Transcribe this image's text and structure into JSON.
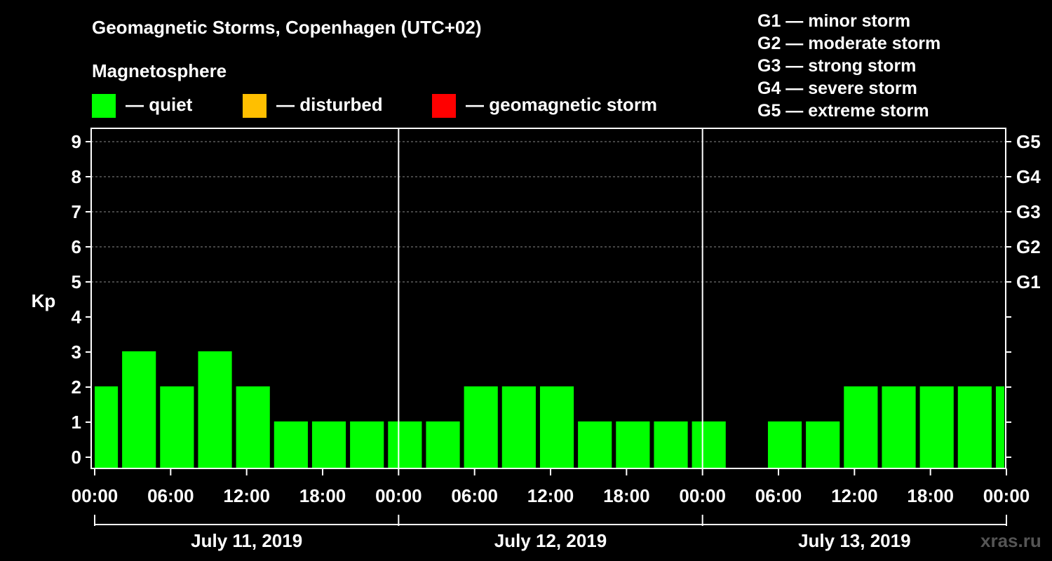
{
  "header": {
    "title": "Geomagnetic Storms, Copenhagen (UTC+02)",
    "subtitle": "Magnetosphere"
  },
  "legend": [
    {
      "label": "— quiet",
      "color": "#00ff00"
    },
    {
      "label": "— disturbed",
      "color": "#ffbf00"
    },
    {
      "label": "— geomagnetic storm",
      "color": "#ff0000"
    }
  ],
  "g_levels": [
    "G1 — minor storm",
    "G2 — moderate storm",
    "G3 — strong storm",
    "G4 — severe storm",
    "G5 — extreme storm"
  ],
  "watermark": "xras.ru",
  "chart_data": {
    "type": "bar",
    "ylabel": "Kp",
    "ylim": [
      0,
      9
    ],
    "y_ticks": [
      "0",
      "1",
      "2",
      "3",
      "4",
      "5",
      "6",
      "7",
      "8",
      "9"
    ],
    "right_axis_labels": [
      {
        "kp": 5,
        "label": "G1"
      },
      {
        "kp": 6,
        "label": "G2"
      },
      {
        "kp": 7,
        "label": "G3"
      },
      {
        "kp": 8,
        "label": "G4"
      },
      {
        "kp": 9,
        "label": "G5"
      }
    ],
    "x_tick_labels": [
      "00:00",
      "06:00",
      "12:00",
      "18:00",
      "00:00",
      "06:00",
      "12:00",
      "18:00",
      "00:00",
      "06:00",
      "12:00",
      "18:00",
      "00:00"
    ],
    "x_range_hours": [
      0,
      72
    ],
    "days": [
      "July 11, 2019",
      "July 12, 2019",
      "July 13, 2019"
    ],
    "grid": "dashed horizontal lines at Kp 5, 6, 7, 8, 9",
    "bars": [
      {
        "start": 0,
        "end": 2,
        "kp": 2,
        "status": "quiet"
      },
      {
        "start": 2,
        "end": 5,
        "kp": 3,
        "status": "quiet"
      },
      {
        "start": 5,
        "end": 8,
        "kp": 2,
        "status": "quiet"
      },
      {
        "start": 8,
        "end": 11,
        "kp": 3,
        "status": "quiet"
      },
      {
        "start": 11,
        "end": 14,
        "kp": 2,
        "status": "quiet"
      },
      {
        "start": 14,
        "end": 17,
        "kp": 1,
        "status": "quiet"
      },
      {
        "start": 17,
        "end": 20,
        "kp": 1,
        "status": "quiet"
      },
      {
        "start": 20,
        "end": 23,
        "kp": 1,
        "status": "quiet"
      },
      {
        "start": 23,
        "end": 26,
        "kp": 1,
        "status": "quiet"
      },
      {
        "start": 26,
        "end": 29,
        "kp": 1,
        "status": "quiet"
      },
      {
        "start": 29,
        "end": 32,
        "kp": 2,
        "status": "quiet"
      },
      {
        "start": 32,
        "end": 35,
        "kp": 2,
        "status": "quiet"
      },
      {
        "start": 35,
        "end": 38,
        "kp": 2,
        "status": "quiet"
      },
      {
        "start": 38,
        "end": 41,
        "kp": 1,
        "status": "quiet"
      },
      {
        "start": 41,
        "end": 44,
        "kp": 1,
        "status": "quiet"
      },
      {
        "start": 44,
        "end": 47,
        "kp": 1,
        "status": "quiet"
      },
      {
        "start": 47,
        "end": 50,
        "kp": 1,
        "status": "quiet"
      },
      {
        "start": 50,
        "end": 53,
        "kp": 0,
        "status": "quiet"
      },
      {
        "start": 53,
        "end": 56,
        "kp": 1,
        "status": "quiet"
      },
      {
        "start": 56,
        "end": 59,
        "kp": 1,
        "status": "quiet"
      },
      {
        "start": 59,
        "end": 62,
        "kp": 2,
        "status": "quiet"
      },
      {
        "start": 62,
        "end": 65,
        "kp": 2,
        "status": "quiet"
      },
      {
        "start": 65,
        "end": 68,
        "kp": 2,
        "status": "quiet"
      },
      {
        "start": 68,
        "end": 71,
        "kp": 2,
        "status": "quiet"
      },
      {
        "start": 71,
        "end": 72,
        "kp": 2,
        "status": "quiet"
      }
    ]
  }
}
